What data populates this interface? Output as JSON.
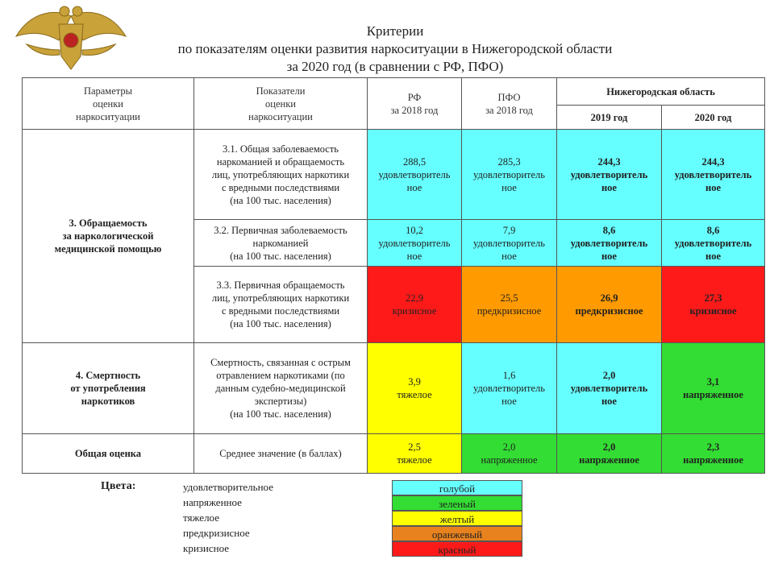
{
  "title": [
    "Критерии",
    "по показателям оценки развития наркоситуации в Нижегородской области",
    "за 2020 год (в сравнении с РФ, ПФО)"
  ],
  "table": {
    "header": {
      "params": [
        "Параметры",
        "оценки",
        "наркоситуации"
      ],
      "indicators": [
        "Показатели",
        "оценки",
        "наркоситуации"
      ],
      "rf": [
        "РФ",
        "за 2018 год"
      ],
      "pfo": [
        "ПФО",
        "за 2018 год"
      ],
      "region": "Нижегородская область",
      "years": [
        "2019 год",
        "2020 год"
      ]
    },
    "groups": [
      {
        "name": [
          "3. Обращаемость",
          "за наркологической",
          "медицинской помощью"
        ],
        "rows": [
          {
            "indicator": [
              "3.1. Общая заболеваемость",
              "наркоманией и обращаемость",
              "лиц, употребляющих наркотики",
              "с вредными последствиями",
              "(на 100 тыс. населения)"
            ],
            "cells": [
              {
                "value": "288,5",
                "status": [
                  "удовлетворитель",
                  "ное"
                ],
                "color": "#66ffff"
              },
              {
                "value": "285,3",
                "status": [
                  "удовлетворитель",
                  "ное"
                ],
                "color": "#66ffff"
              },
              {
                "value": "244,3",
                "status": [
                  "удовлетворитель",
                  "ное"
                ],
                "color": "#66ffff"
              },
              {
                "value": "244,3",
                "status": [
                  "удовлетворитель",
                  "ное"
                ],
                "color": "#66ffff"
              }
            ]
          },
          {
            "indicator": [
              "3.2. Первичная заболеваемость",
              "наркоманией",
              "(на 100 тыс. населения)"
            ],
            "cells": [
              {
                "value": "10,2",
                "status": [
                  "удовлетворитель",
                  "ное"
                ],
                "color": "#66ffff"
              },
              {
                "value": "7,9",
                "status": [
                  "удовлетворитель",
                  "ное"
                ],
                "color": "#66ffff"
              },
              {
                "value": "8,6",
                "status": [
                  "удовлетворитель",
                  "ное"
                ],
                "color": "#66ffff"
              },
              {
                "value": "8,6",
                "status": [
                  "удовлетворитель",
                  "ное"
                ],
                "color": "#66ffff"
              }
            ]
          },
          {
            "indicator": [
              "3.3. Первичная обращаемость",
              "лиц, употребляющих наркотики",
              "с вредными последствиями",
              "(на 100 тыс. населения)"
            ],
            "cells": [
              {
                "value": "22,9",
                "status": [
                  "кризисное"
                ],
                "color": "#ff1a1a"
              },
              {
                "value": "25,5",
                "status": [
                  "предкризисное"
                ],
                "color": "#ff9a00"
              },
              {
                "value": "26,9",
                "status": [
                  "предкризисное"
                ],
                "color": "#ff9a00"
              },
              {
                "value": "27,3",
                "status": [
                  "кризисное"
                ],
                "color": "#ff1a1a"
              }
            ]
          }
        ]
      },
      {
        "name": [
          "4. Смертность",
          "от употребления",
          "наркотиков"
        ],
        "rows": [
          {
            "indicator": [
              "Смертность, связанная с острым",
              "отравлением наркотиками (по",
              "данным судебно-медицинской",
              "экспертизы)",
              "(на 100 тыс. населения)"
            ],
            "cells": [
              {
                "value": "3,9",
                "status": [
                  "тяжелое"
                ],
                "color": "#ffff00"
              },
              {
                "value": "1,6",
                "status": [
                  "удовлетворитель",
                  "ное"
                ],
                "color": "#66ffff"
              },
              {
                "value": "2,0",
                "status": [
                  "удовлетворитель",
                  "ное"
                ],
                "color": "#66ffff"
              },
              {
                "value": "3,1",
                "status": [
                  "напряженное"
                ],
                "color": "#33dd33"
              }
            ]
          }
        ]
      },
      {
        "name": [
          "Общая оценка"
        ],
        "rows": [
          {
            "indicator": [
              "Среднее значение (в баллах)"
            ],
            "cells": [
              {
                "value": "2,5",
                "status": [
                  "тяжелое"
                ],
                "color": "#ffff00"
              },
              {
                "value": "2,0",
                "status": [
                  "напряженное"
                ],
                "color": "#33dd33"
              },
              {
                "value": "2,0",
                "status": [
                  "напряженное"
                ],
                "color": "#33dd33"
              },
              {
                "value": "2,3",
                "status": [
                  "напряженное"
                ],
                "color": "#33dd33"
              }
            ]
          }
        ]
      }
    ]
  },
  "legend": {
    "label": "Цвета:",
    "items": [
      {
        "status": "удовлетворительное",
        "color_name": "голубой",
        "color": "#66ffff"
      },
      {
        "status": "напряженное",
        "color_name": "зеленый",
        "color": "#33dd33"
      },
      {
        "status": "тяжелое",
        "color_name": "желтый",
        "color": "#ffff00"
      },
      {
        "status": "предкризисное",
        "color_name": "оранжевый",
        "color": "#e8821e"
      },
      {
        "status": "кризисное",
        "color_name": "красный",
        "color": "#ff1a1a"
      }
    ]
  }
}
